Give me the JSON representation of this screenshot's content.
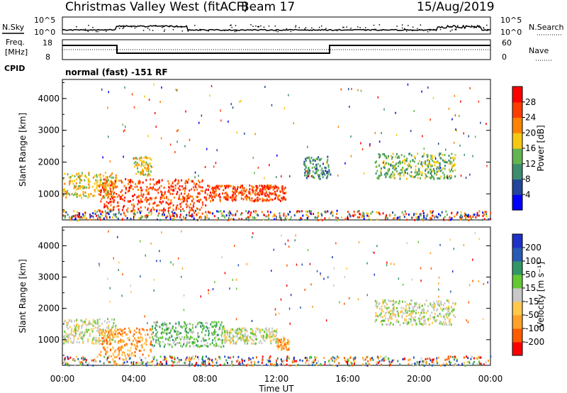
{
  "header": {
    "title": "Christmas Valley West (fitACF)",
    "beam": "Beam 17",
    "date": "15/Aug/2019"
  },
  "strips": {
    "nsky_label": "N.Sky",
    "nsearch_label": "N.Search",
    "freq_label_1": "Freq.",
    "freq_label_2": "[MHz]",
    "nave_label": "Nave",
    "cpid_label": "CPID",
    "cpid_text": "normal (fast) -151 RF",
    "noise_ticks_left": [
      "10^5",
      "10^0"
    ],
    "noise_ticks_right": [
      "10^5",
      "10^0"
    ],
    "freq_ticks": [
      "18",
      "8"
    ],
    "nave_ticks": [
      "60",
      "0"
    ]
  },
  "colors": {
    "power": [
      "#0000ff",
      "#23459b",
      "#3c8d6e",
      "#64b450",
      "#f5c814",
      "#ff8200",
      "#ff3c00",
      "#ff0000"
    ],
    "velocity": [
      "#ff0000",
      "#ff5a00",
      "#ffa028",
      "#ffc84b",
      "#c8c8c8",
      "#64c832",
      "#329664",
      "#285ab4",
      "#1e32c8"
    ],
    "ground": "#b4b4b4"
  },
  "chart_data": [
    {
      "type": "heatmap",
      "panel": "power",
      "ylabel": "Slant Range [km]",
      "xlabel": "",
      "ylim": [
        180,
        4600
      ],
      "xlim": [
        0,
        24
      ],
      "yticks": [
        "1000",
        "2000",
        "3000",
        "4000"
      ],
      "xticks": [
        "00:00",
        "04:00",
        "08:00",
        "12:00",
        "16:00",
        "20:00",
        "00:00"
      ],
      "colorbar_label": "Power [dB]",
      "colorbar_ticks": [
        "4",
        "8",
        "12",
        "16",
        "20",
        "24",
        "28"
      ],
      "regions": [
        {
          "t0": 0.0,
          "t1": 3.0,
          "r0": 900,
          "r1": 1700,
          "level": 4
        },
        {
          "t0": 2.0,
          "t1": 8.0,
          "r0": 500,
          "r1": 1500,
          "level": 6
        },
        {
          "t0": 8.0,
          "t1": 12.5,
          "r0": 800,
          "r1": 1300,
          "level": 6
        },
        {
          "t0": 4.0,
          "t1": 5.0,
          "r0": 1600,
          "r1": 2200,
          "level": 4
        },
        {
          "t0": 13.5,
          "t1": 15.0,
          "r0": 1500,
          "r1": 2200,
          "level": 2
        },
        {
          "t0": 17.5,
          "t1": 22.0,
          "r0": 1500,
          "r1": 2300,
          "level": 3
        }
      ]
    },
    {
      "type": "heatmap",
      "panel": "velocity",
      "ylabel": "Slant Range [km]",
      "xlabel": "Time UT",
      "ylim": [
        180,
        4600
      ],
      "xlim": [
        0,
        24
      ],
      "yticks": [
        "1000",
        "2000",
        "3000",
        "4000"
      ],
      "xticks": [
        "00:00",
        "04:00",
        "08:00",
        "12:00",
        "16:00",
        "20:00",
        "00:00"
      ],
      "colorbar_label": "Velocity [m s⁻¹]",
      "colorbar_ticks": [
        "-200",
        "-100",
        "-50",
        "-15",
        "15",
        "50",
        "100",
        "200"
      ],
      "regions": [
        {
          "t0": 0.0,
          "t1": 3.0,
          "r0": 900,
          "r1": 1700,
          "level": 4
        },
        {
          "t0": 2.0,
          "t1": 5.0,
          "r0": 500,
          "r1": 1400,
          "level": 2
        },
        {
          "t0": 5.0,
          "t1": 9.0,
          "r0": 800,
          "r1": 1600,
          "level": 5
        },
        {
          "t0": 9.0,
          "t1": 12.0,
          "r0": 900,
          "r1": 1400,
          "level": 4
        },
        {
          "t0": 12.0,
          "t1": 12.7,
          "r0": 700,
          "r1": 1100,
          "level": 2
        },
        {
          "t0": 17.5,
          "t1": 22.0,
          "r0": 1500,
          "r1": 2300,
          "level": 4
        }
      ]
    }
  ]
}
